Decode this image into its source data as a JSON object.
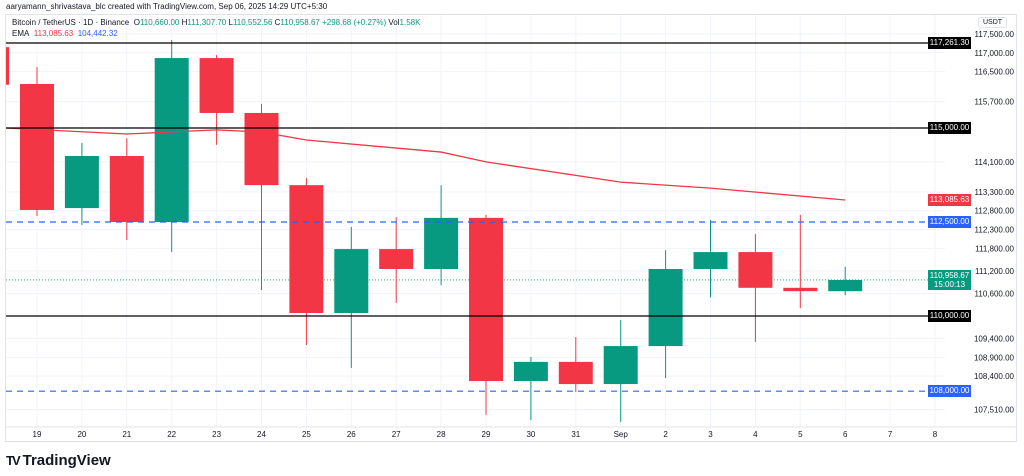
{
  "header": {
    "credit": "aaryamann_shrivastava_blc created with TradingView.com, Sep 06, 2025 14:29 UTC+5:30",
    "symbol": "Bitcoin / TetherUS · 1D · Binance",
    "open_label": "O",
    "open": "110,660.00",
    "high_label": "H",
    "high": "111,307.70",
    "low_label": "L",
    "low": "110,552.56",
    "close_label": "C",
    "close": "110,958.67",
    "change": "+298.68 (+0.27%)",
    "vol_label": "Vol",
    "vol": "1.58K",
    "ema_label": "EMA",
    "ema1": "113,085.63",
    "ema2": "104,442.32"
  },
  "axis": {
    "currency": "USDT",
    "price_labels": [
      "117,500.00",
      "117,000.00",
      "116,500.00",
      "115,700.00",
      "114,100.00",
      "113,300.00",
      "112,800.00",
      "112,300.00",
      "111,800.00",
      "111,200.00",
      "110,600.00",
      "109,400.00",
      "108,900.00",
      "108,400.00",
      "107,510.00"
    ],
    "badges": {
      "black1": "117,261.30",
      "black2": "115,000.00",
      "ema": "113,085.63",
      "blue1": "112,500.00",
      "current": "110,958.67",
      "countdown": "15:00:13",
      "black3": "110,000.00",
      "blue2": "108,000.00"
    }
  },
  "colors": {
    "up": "#089981",
    "down": "#f23645",
    "ema": "#f23645",
    "support": "#2962ff",
    "level": "#000000"
  },
  "chart_data": {
    "type": "candlestick",
    "x_ticks": [
      "19",
      "20",
      "21",
      "22",
      "23",
      "24",
      "25",
      "26",
      "27",
      "28",
      "29",
      "30",
      "31",
      "Sep",
      "2",
      "3",
      "4",
      "5",
      "6",
      "7",
      "8"
    ],
    "candles": [
      {
        "date": "18",
        "o": 117150,
        "h": 117300,
        "l": 116100,
        "c": 116150
      },
      {
        "date": "19",
        "o": 116170,
        "h": 116620,
        "l": 112660,
        "c": 112820
      },
      {
        "date": "20",
        "o": 112870,
        "h": 114600,
        "l": 112420,
        "c": 114255
      },
      {
        "date": "21",
        "o": 114255,
        "h": 114730,
        "l": 112020,
        "c": 112500
      },
      {
        "date": "22",
        "o": 112500,
        "h": 117340,
        "l": 111700,
        "c": 116860
      },
      {
        "date": "23",
        "o": 116860,
        "h": 116940,
        "l": 114550,
        "c": 115400
      },
      {
        "date": "24",
        "o": 115400,
        "h": 115640,
        "l": 110690,
        "c": 113480
      },
      {
        "date": "25",
        "o": 113480,
        "h": 113670,
        "l": 109230,
        "c": 110080
      },
      {
        "date": "26",
        "o": 110080,
        "h": 112370,
        "l": 108620,
        "c": 111780
      },
      {
        "date": "27",
        "o": 111780,
        "h": 112630,
        "l": 110350,
        "c": 111250
      },
      {
        "date": "28",
        "o": 111250,
        "h": 113480,
        "l": 110820,
        "c": 112610
      },
      {
        "date": "29",
        "o": 112610,
        "h": 112690,
        "l": 107370,
        "c": 108270
      },
      {
        "date": "30",
        "o": 108270,
        "h": 108910,
        "l": 107230,
        "c": 108780
      },
      {
        "date": "31",
        "o": 108780,
        "h": 109440,
        "l": 107980,
        "c": 108190
      },
      {
        "date": "Sep",
        "o": 108190,
        "h": 109890,
        "l": 107180,
        "c": 109200
      },
      {
        "date": "2",
        "o": 109200,
        "h": 111750,
        "l": 108350,
        "c": 111250
      },
      {
        "date": "3",
        "o": 111250,
        "h": 112550,
        "l": 110500,
        "c": 111700
      },
      {
        "date": "4",
        "o": 111700,
        "h": 112180,
        "l": 109310,
        "c": 110750
      },
      {
        "date": "5",
        "o": 110750,
        "h": 112690,
        "l": 110210,
        "c": 110660
      },
      {
        "date": "6",
        "o": 110660.0,
        "h": 111307.7,
        "l": 110552.56,
        "c": 110958.67
      }
    ],
    "ema": [
      {
        "date": "18",
        "v": 115000
      },
      {
        "date": "21",
        "v": 114840
      },
      {
        "date": "23",
        "v": 114950
      },
      {
        "date": "24",
        "v": 114890
      },
      {
        "date": "25",
        "v": 114680
      },
      {
        "date": "28",
        "v": 114360
      },
      {
        "date": "29",
        "v": 114100
      },
      {
        "date": "Sep",
        "v": 113560
      },
      {
        "date": "3",
        "v": 113400
      },
      {
        "date": "6",
        "v": 113085.63
      }
    ],
    "levels": [
      {
        "price": 117261.3,
        "style": "solid",
        "color": "#000000"
      },
      {
        "price": 115000,
        "style": "solid",
        "color": "#000000"
      },
      {
        "price": 110000,
        "style": "solid",
        "color": "#000000"
      },
      {
        "price": 112500,
        "style": "dashed",
        "color": "#2962ff"
      },
      {
        "price": 108000,
        "style": "dashed",
        "color": "#2962ff"
      }
    ],
    "current_price": 110958.67
  },
  "footer": {
    "logo": "TradingView"
  }
}
